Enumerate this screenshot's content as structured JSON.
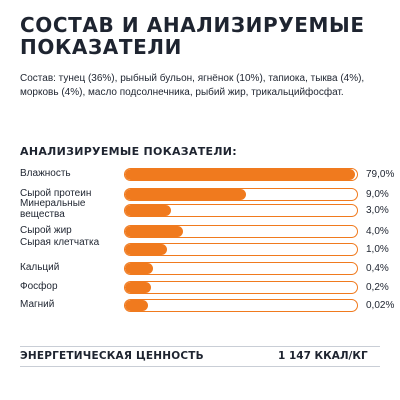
{
  "page": {
    "title": "СОСТАВ И АНАЛИЗИРУЕМЫЕ ПОКАЗАТЕЛИ",
    "composition": "Состав: тунец (36%), рыбный бульон, ягнёнок (10%), тапиока, тыква (4%), морковь (4%), масло подсолнечника, рыбий жир, трикальцийфосфат.",
    "analysis_heading": "АНАЛИЗИРУЕМЫЕ ПОКАЗАТЕЛИ:",
    "energy_label": "ЭНЕРГЕТИЧЕСКАЯ ЦЕННОСТЬ",
    "energy_value": "1 147 ККАЛ/КГ"
  },
  "colors": {
    "accent": "#f07a1e",
    "text": "#1e2430",
    "divider": "#c9ced6"
  },
  "indicators": [
    {
      "label": "Влажность",
      "value": "79,0%",
      "fill_fraction": 0.99
    },
    {
      "label": "Сырой протеин",
      "value": "9,0%",
      "fill_fraction": 0.52
    },
    {
      "label": "Минеральные вещества",
      "value": "3,0%",
      "fill_fraction": 0.2
    },
    {
      "label": "Сырой жир",
      "value": "4,0%",
      "fill_fraction": 0.25
    },
    {
      "label": "Сырая клетчатка",
      "value": "1,0%",
      "fill_fraction": 0.18
    },
    {
      "label": "Кальций",
      "value": "0,4%",
      "fill_fraction": 0.12
    },
    {
      "label": "Фосфор",
      "value": "0,2%",
      "fill_fraction": 0.11
    },
    {
      "label": "Магний",
      "value": "0,02%",
      "fill_fraction": 0.1
    }
  ]
}
